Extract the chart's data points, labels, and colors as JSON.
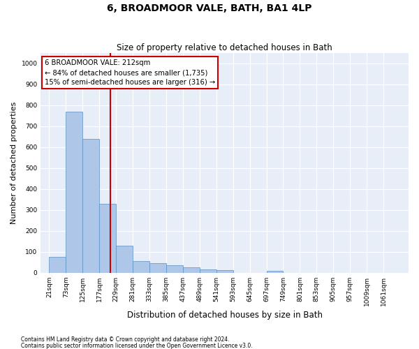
{
  "title": "6, BROADMOOR VALE, BATH, BA1 4LP",
  "subtitle": "Size of property relative to detached houses in Bath",
  "xlabel": "Distribution of detached houses by size in Bath",
  "ylabel": "Number of detached properties",
  "footnote1": "Contains HM Land Registry data © Crown copyright and database right 2024.",
  "footnote2": "Contains public sector information licensed under the Open Government Licence v3.0.",
  "annotation_line1": "6 BROADMOOR VALE: 212sqm",
  "annotation_line2": "← 84% of detached houses are smaller (1,735)",
  "annotation_line3": "15% of semi-detached houses are larger (316) →",
  "bar_color": "#aec6e8",
  "bar_edge_color": "#5a8fc2",
  "vline_color": "#cc0000",
  "property_size": 212,
  "ylim": [
    0,
    1050
  ],
  "yticks": [
    0,
    100,
    200,
    300,
    400,
    500,
    600,
    700,
    800,
    900,
    1000
  ],
  "bg_color": "#e8eef8",
  "categories": [
    "21sqm",
    "73sqm",
    "125sqm",
    "177sqm",
    "229sqm",
    "281sqm",
    "333sqm",
    "385sqm",
    "437sqm",
    "489sqm",
    "541sqm",
    "593sqm",
    "645sqm",
    "697sqm",
    "749sqm",
    "801sqm",
    "853sqm",
    "905sqm",
    "957sqm",
    "1009sqm",
    "1061sqm"
  ],
  "bin_left_edges": [
    21,
    73,
    125,
    177,
    229,
    281,
    333,
    385,
    437,
    489,
    541,
    593,
    645,
    697,
    749,
    801,
    853,
    905,
    957,
    1009,
    1061
  ],
  "bin_width": 52,
  "bar_heights": [
    75,
    770,
    640,
    330,
    130,
    55,
    45,
    35,
    25,
    15,
    12,
    0,
    0,
    8,
    0,
    0,
    0,
    0,
    0,
    0,
    0
  ],
  "figsize": [
    6.0,
    5.0
  ],
  "dpi": 100
}
